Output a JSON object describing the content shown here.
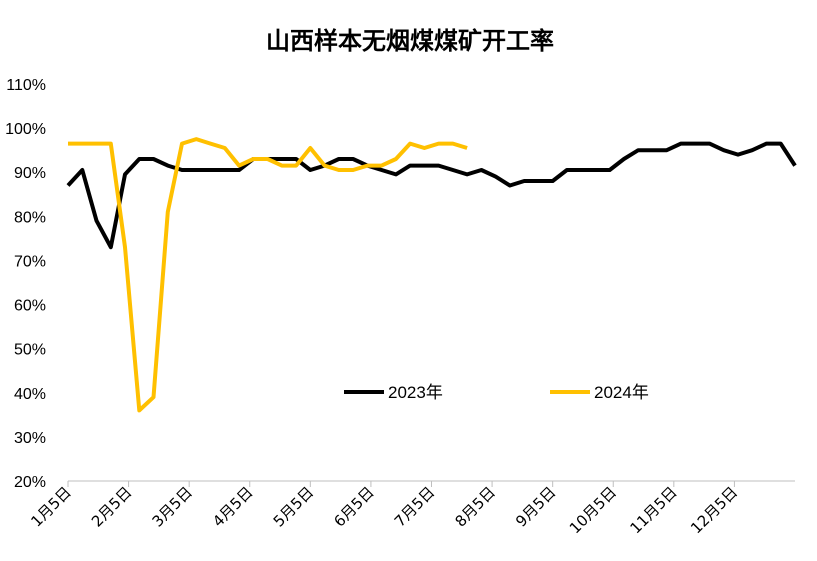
{
  "chart_data": {
    "type": "line",
    "title": "山西样本无烟煤煤矿开工率",
    "xlabel": "",
    "ylabel": "",
    "ylim": [
      20,
      110
    ],
    "yticks": [
      "20%",
      "30%",
      "40%",
      "50%",
      "60%",
      "70%",
      "80%",
      "90%",
      "100%",
      "110%"
    ],
    "x_tick_labels": [
      "1月5日",
      "2月5日",
      "3月5日",
      "4月5日",
      "5月5日",
      "6月5日",
      "7月5日",
      "8月5日",
      "9月5日",
      "10月5日",
      "11月5日",
      "12月5日"
    ],
    "grid": false,
    "legend_position": "center-bottom",
    "series": [
      {
        "name": "2023年",
        "color": "#000000",
        "values": [
          87,
          90.5,
          79,
          73,
          89.5,
          93,
          93,
          91.5,
          90.5,
          90.5,
          90.5,
          90.5,
          90.5,
          93,
          93,
          93,
          93,
          90.5,
          91.5,
          93,
          93,
          91.5,
          90.5,
          89.5,
          91.5,
          91.5,
          91.5,
          90.5,
          89.5,
          90.5,
          89,
          87,
          88,
          88,
          88,
          90.5,
          90.5,
          90.5,
          90.5,
          93,
          95,
          95,
          95,
          96.5,
          96.5,
          96.5,
          95,
          94,
          95,
          96.5,
          96.5,
          91.5
        ]
      },
      {
        "name": "2024年",
        "color": "#FFC000",
        "values": [
          96.5,
          96.5,
          96.5,
          96.5,
          73,
          36,
          39,
          81,
          96.5,
          97.5,
          96.5,
          95.5,
          91.5,
          93,
          93,
          91.5,
          91.5,
          95.5,
          91.5,
          90.5,
          90.5,
          91.5,
          91.5,
          93,
          96.5,
          95.5,
          96.5,
          96.5,
          95.5
        ]
      }
    ]
  }
}
